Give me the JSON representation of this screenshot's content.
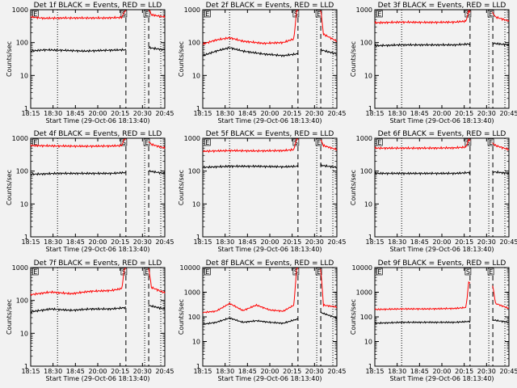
{
  "page": {
    "background": "#f2f2f2"
  },
  "colors": {
    "events": "#000000",
    "lld": "#ff0000",
    "axis": "#000000"
  },
  "chart_data": [
    {
      "type": "line",
      "title": "Det 1f BLACK = Events, RED = LLD",
      "xlabel": "Start Time (29-Oct-06 18:13:40)",
      "ylabel": "Counts/sec",
      "x_ticks": [
        "18:15",
        "18:30",
        "18:45",
        "20:00",
        "20:15",
        "20:30",
        "20:45"
      ],
      "y_ticks": [
        "1",
        "10",
        "100",
        "1000"
      ],
      "ylim": [
        1,
        1000
      ],
      "y_scale": "log",
      "markers": [
        {
          "label": "E",
          "pos": 0.02
        },
        {
          "label": "S",
          "pos": 0.68
        },
        {
          "label": "E",
          "pos": 0.85
        }
      ],
      "dotted_lines": [
        0.2,
        0.85,
        0.97
      ],
      "dashed_lines": [
        0.71,
        0.88
      ],
      "gaps": [
        [
          0.71,
          0.88
        ]
      ],
      "series": [
        {
          "name": "Events",
          "color": "#000000",
          "x": [
            0.0,
            0.1,
            0.25,
            0.4,
            0.55,
            0.7,
            0.88,
            1.0
          ],
          "values": [
            55,
            60,
            58,
            55,
            58,
            60,
            70,
            60
          ]
        },
        {
          "name": "LLD",
          "color": "#ff0000",
          "x": [
            0.0,
            0.1,
            0.25,
            0.4,
            0.55,
            0.68,
            0.7,
            0.88,
            0.9,
            1.0
          ],
          "values": [
            600,
            550,
            560,
            560,
            560,
            580,
            900,
            1100,
            700,
            600
          ]
        }
      ]
    },
    {
      "type": "line",
      "title": "Det 2f BLACK = Events, RED = LLD",
      "xlabel": "Start Time (29-Oct-06 18:13:40)",
      "ylabel": "Counts/sec",
      "x_ticks": [
        "18:15",
        "18:30",
        "18:45",
        "20:00",
        "20:15",
        "20:30",
        "20:45"
      ],
      "y_ticks": [
        "1",
        "10",
        "100",
        "1000"
      ],
      "ylim": [
        1,
        1000
      ],
      "y_scale": "log",
      "markers": [
        {
          "label": "E",
          "pos": 0.02
        },
        {
          "label": "S",
          "pos": 0.68
        },
        {
          "label": "E",
          "pos": 0.85
        }
      ],
      "dotted_lines": [
        0.2,
        0.85,
        0.97
      ],
      "dashed_lines": [
        0.71,
        0.88
      ],
      "gaps": [
        [
          0.71,
          0.88
        ]
      ],
      "series": [
        {
          "name": "Events",
          "color": "#000000",
          "x": [
            0.0,
            0.1,
            0.2,
            0.3,
            0.45,
            0.6,
            0.7,
            0.88,
            1.0
          ],
          "values": [
            40,
            55,
            70,
            55,
            45,
            40,
            45,
            60,
            45
          ]
        },
        {
          "name": "LLD",
          "color": "#ff0000",
          "x": [
            0.0,
            0.1,
            0.2,
            0.3,
            0.45,
            0.6,
            0.68,
            0.7,
            0.88,
            0.9,
            1.0
          ],
          "values": [
            90,
            120,
            140,
            110,
            95,
            100,
            130,
            1000,
            1000,
            180,
            110
          ]
        }
      ]
    },
    {
      "type": "line",
      "title": "Det 3f BLACK = Events, RED = LLD",
      "xlabel": "Start Time (29-Oct-06 18:13:40)",
      "ylabel": "Counts/sec",
      "x_ticks": [
        "18:15",
        "18:30",
        "18:45",
        "20:00",
        "20:15",
        "20:30",
        "20:45"
      ],
      "y_ticks": [
        "1",
        "10",
        "100",
        "1000"
      ],
      "ylim": [
        1,
        1000
      ],
      "y_scale": "log",
      "markers": [
        {
          "label": "E",
          "pos": 0.02
        },
        {
          "label": "S",
          "pos": 0.68
        },
        {
          "label": "E",
          "pos": 0.85
        }
      ],
      "dotted_lines": [
        0.2,
        0.85,
        0.97
      ],
      "dashed_lines": [
        0.71,
        0.88
      ],
      "gaps": [
        [
          0.71,
          0.88
        ]
      ],
      "series": [
        {
          "name": "Events",
          "color": "#000000",
          "x": [
            0.0,
            0.2,
            0.4,
            0.6,
            0.7,
            0.88,
            1.0
          ],
          "values": [
            80,
            85,
            85,
            85,
            90,
            95,
            85
          ]
        },
        {
          "name": "LLD",
          "color": "#ff0000",
          "x": [
            0.0,
            0.2,
            0.4,
            0.6,
            0.68,
            0.7,
            0.88,
            0.9,
            1.0
          ],
          "values": [
            400,
            420,
            410,
            420,
            450,
            900,
            800,
            600,
            450
          ]
        }
      ]
    },
    {
      "type": "line",
      "title": "Det 4f BLACK = Events, RED = LLD",
      "xlabel": "Start Time (29-Oct-06 18:13:40)",
      "ylabel": "Counts/sec",
      "x_ticks": [
        "18:15",
        "18:30",
        "18:45",
        "20:00",
        "20:15",
        "20:30",
        "20:45"
      ],
      "y_ticks": [
        "1",
        "10",
        "100",
        "1000"
      ],
      "ylim": [
        1,
        1000
      ],
      "y_scale": "log",
      "markers": [
        {
          "label": "E",
          "pos": 0.02
        },
        {
          "label": "S",
          "pos": 0.68
        },
        {
          "label": "E",
          "pos": 0.85
        }
      ],
      "dotted_lines": [
        0.2,
        0.85,
        0.97
      ],
      "dashed_lines": [
        0.71,
        0.88
      ],
      "gaps": [
        [
          0.71,
          0.88
        ]
      ],
      "series": [
        {
          "name": "Events",
          "color": "#000000",
          "x": [
            0.0,
            0.2,
            0.4,
            0.6,
            0.7,
            0.88,
            1.0
          ],
          "values": [
            80,
            85,
            85,
            85,
            90,
            100,
            85
          ]
        },
        {
          "name": "LLD",
          "color": "#ff0000",
          "x": [
            0.0,
            0.2,
            0.4,
            0.6,
            0.68,
            0.7,
            0.88,
            0.9,
            1.0
          ],
          "values": [
            600,
            580,
            570,
            580,
            600,
            1000,
            800,
            650,
            500
          ]
        }
      ]
    },
    {
      "type": "line",
      "title": "Det 5f BLACK = Events, RED = LLD",
      "xlabel": "Start Time (29-Oct-06 18:13:40)",
      "ylabel": "Counts/sec",
      "x_ticks": [
        "18:15",
        "18:30",
        "18:45",
        "20:00",
        "20:15",
        "20:30",
        "20:45"
      ],
      "y_ticks": [
        "1",
        "10",
        "100",
        "1000"
      ],
      "ylim": [
        1,
        1000
      ],
      "y_scale": "log",
      "markers": [
        {
          "label": "E",
          "pos": 0.02
        },
        {
          "label": "S",
          "pos": 0.68
        },
        {
          "label": "E",
          "pos": 0.85
        }
      ],
      "dotted_lines": [
        0.2,
        0.85,
        0.97
      ],
      "dashed_lines": [
        0.71,
        0.88
      ],
      "gaps": [
        [
          0.71,
          0.88
        ]
      ],
      "series": [
        {
          "name": "Events",
          "color": "#000000",
          "x": [
            0.0,
            0.2,
            0.4,
            0.6,
            0.7,
            0.88,
            1.0
          ],
          "values": [
            130,
            140,
            140,
            135,
            140,
            150,
            130
          ]
        },
        {
          "name": "LLD",
          "color": "#ff0000",
          "x": [
            0.0,
            0.2,
            0.4,
            0.6,
            0.68,
            0.7,
            0.88,
            0.9,
            1.0
          ],
          "values": [
            400,
            420,
            410,
            420,
            450,
            1000,
            900,
            600,
            450
          ]
        }
      ]
    },
    {
      "type": "line",
      "title": "Det 6f BLACK = Events, RED = LLD",
      "xlabel": "Start Time (29-Oct-06 18:13:40)",
      "ylabel": "Counts/sec",
      "x_ticks": [
        "18:15",
        "18:30",
        "18:45",
        "20:00",
        "20:15",
        "20:30",
        "20:45"
      ],
      "y_ticks": [
        "1",
        "10",
        "100",
        "1000"
      ],
      "ylim": [
        1,
        1000
      ],
      "y_scale": "log",
      "markers": [
        {
          "label": "E",
          "pos": 0.02
        },
        {
          "label": "S",
          "pos": 0.68
        },
        {
          "label": "E",
          "pos": 0.85
        }
      ],
      "dotted_lines": [
        0.2,
        0.85,
        0.97
      ],
      "dashed_lines": [
        0.71,
        0.88
      ],
      "gaps": [
        [
          0.71,
          0.88
        ]
      ],
      "series": [
        {
          "name": "Events",
          "color": "#000000",
          "x": [
            0.0,
            0.2,
            0.4,
            0.6,
            0.7,
            0.88,
            1.0
          ],
          "values": [
            85,
            85,
            85,
            85,
            90,
            95,
            85
          ]
        },
        {
          "name": "LLD",
          "color": "#ff0000",
          "x": [
            0.0,
            0.2,
            0.4,
            0.6,
            0.68,
            0.7,
            0.88,
            0.9,
            1.0
          ],
          "values": [
            500,
            500,
            500,
            510,
            540,
            900,
            700,
            600,
            450
          ]
        }
      ]
    },
    {
      "type": "line",
      "title": "Det 7f BLACK = Events, RED = LLD",
      "xlabel": "Start Time (29-Oct-06 18:13:40)",
      "ylabel": "Counts/sec",
      "x_ticks": [
        "18:15",
        "18:30",
        "18:45",
        "20:00",
        "20:15",
        "20:30",
        "20:45"
      ],
      "y_ticks": [
        "1",
        "10",
        "100",
        "1000"
      ],
      "ylim": [
        1,
        1000
      ],
      "y_scale": "log",
      "markers": [
        {
          "label": "E",
          "pos": 0.02
        },
        {
          "label": "S",
          "pos": 0.68
        },
        {
          "label": "E",
          "pos": 0.85
        }
      ],
      "dotted_lines": [
        0.2,
        0.85,
        0.97
      ],
      "dashed_lines": [
        0.71,
        0.88
      ],
      "gaps": [
        [
          0.71,
          0.88
        ]
      ],
      "series": [
        {
          "name": "Events",
          "color": "#000000",
          "x": [
            0.0,
            0.15,
            0.3,
            0.45,
            0.6,
            0.7,
            0.88,
            1.0
          ],
          "values": [
            45,
            55,
            50,
            55,
            55,
            60,
            70,
            55
          ]
        },
        {
          "name": "LLD",
          "color": "#ff0000",
          "x": [
            0.0,
            0.15,
            0.3,
            0.45,
            0.6,
            0.68,
            0.7,
            0.88,
            0.9,
            1.0
          ],
          "values": [
            150,
            180,
            160,
            190,
            200,
            230,
            1000,
            1000,
            250,
            170
          ]
        }
      ]
    },
    {
      "type": "line",
      "title": "Det 8f BLACK = Events, RED = LLD",
      "xlabel": "Start Time (29-Oct-06 18:13:40)",
      "ylabel": "Counts/sec",
      "x_ticks": [
        "18:15",
        "18:30",
        "18:45",
        "20:00",
        "20:15",
        "20:30",
        "20:45"
      ],
      "y_ticks": [
        "1",
        "10",
        "100",
        "1000",
        "10000"
      ],
      "ylim": [
        1,
        10000
      ],
      "y_scale": "log",
      "markers": [
        {
          "label": "E",
          "pos": 0.02
        },
        {
          "label": "S",
          "pos": 0.68
        },
        {
          "label": "E",
          "pos": 0.85
        }
      ],
      "dotted_lines": [
        0.2,
        0.85,
        0.97
      ],
      "dashed_lines": [
        0.71,
        0.88
      ],
      "gaps": [
        [
          0.71,
          0.88
        ]
      ],
      "series": [
        {
          "name": "Events",
          "color": "#000000",
          "x": [
            0.0,
            0.1,
            0.2,
            0.3,
            0.4,
            0.5,
            0.6,
            0.7,
            0.88,
            1.0
          ],
          "values": [
            50,
            60,
            90,
            60,
            70,
            60,
            55,
            80,
            150,
            90
          ]
        },
        {
          "name": "LLD",
          "color": "#ff0000",
          "x": [
            0.0,
            0.1,
            0.2,
            0.3,
            0.4,
            0.5,
            0.6,
            0.68,
            0.7,
            0.88,
            0.9,
            1.0
          ],
          "values": [
            150,
            170,
            350,
            180,
            300,
            190,
            170,
            300,
            10000,
            9000,
            300,
            250
          ]
        }
      ]
    },
    {
      "type": "line",
      "title": "Det 9f BLACK = Events, RED = LLD",
      "xlabel": "Start Time (29-Oct-06 18:13:40)",
      "ylabel": "Counts/sec",
      "x_ticks": [
        "18:15",
        "18:30",
        "18:45",
        "20:00",
        "20:15",
        "20:30",
        "20:45"
      ],
      "y_ticks": [
        "1",
        "10",
        "100",
        "1000",
        "10000"
      ],
      "ylim": [
        1,
        10000
      ],
      "y_scale": "log",
      "markers": [
        {
          "label": "E",
          "pos": 0.02
        },
        {
          "label": "S",
          "pos": 0.68
        },
        {
          "label": "E",
          "pos": 0.85
        }
      ],
      "dotted_lines": [
        0.2,
        0.85,
        0.97
      ],
      "dashed_lines": [
        0.71,
        0.88
      ],
      "gaps": [
        [
          0.71,
          0.88
        ]
      ],
      "series": [
        {
          "name": "Events",
          "color": "#000000",
          "x": [
            0.0,
            0.2,
            0.4,
            0.6,
            0.7,
            0.88,
            1.0
          ],
          "values": [
            55,
            60,
            60,
            60,
            65,
            75,
            60
          ]
        },
        {
          "name": "LLD",
          "color": "#ff0000",
          "x": [
            0.0,
            0.2,
            0.4,
            0.6,
            0.68,
            0.7,
            0.88,
            0.9,
            1.0
          ],
          "values": [
            200,
            210,
            210,
            220,
            240,
            2500,
            1800,
            350,
            220
          ]
        }
      ]
    }
  ]
}
